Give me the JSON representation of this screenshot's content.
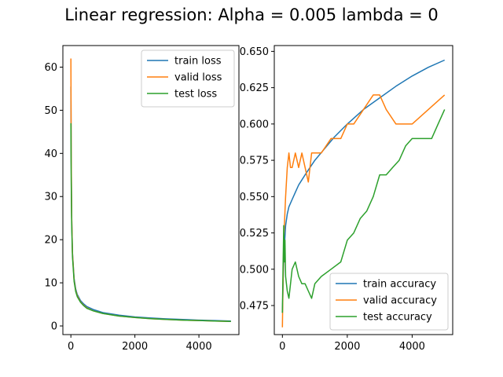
{
  "title": "Linear regression: Alpha = 0.005 lambda =  0",
  "chart_data": [
    {
      "type": "line",
      "xlim": [
        -250,
        5250
      ],
      "ylim": [
        -2,
        65
      ],
      "xticks": [
        0,
        2000,
        4000
      ],
      "yticks": [
        0,
        10,
        20,
        30,
        40,
        50,
        60
      ],
      "xtick_labels": [
        "0",
        "2000",
        "4000"
      ],
      "ytick_labels": [
        "0",
        "10",
        "20",
        "30",
        "40",
        "50",
        "60"
      ],
      "legend_position": "upper right",
      "series": [
        {
          "name": "train loss",
          "color": "#1f77b4",
          "x": [
            0,
            10,
            25,
            50,
            100,
            150,
            200,
            300,
            400,
            500,
            700,
            1000,
            1500,
            2000,
            2500,
            3000,
            3500,
            4000,
            4500,
            5000
          ],
          "y": [
            55.5,
            38.0,
            25.0,
            17.0,
            11.0,
            8.6,
            7.3,
            5.9,
            5.1,
            4.5,
            3.8,
            3.1,
            2.5,
            2.1,
            1.85,
            1.65,
            1.5,
            1.35,
            1.25,
            1.15
          ]
        },
        {
          "name": "valid loss",
          "color": "#ff7f0e",
          "x": [
            0,
            10,
            25,
            50,
            100,
            150,
            200,
            300,
            400,
            500,
            700,
            1000,
            1500,
            2000,
            2500,
            3000,
            3500,
            4000,
            4500,
            5000
          ],
          "y": [
            62.0,
            40.0,
            25.5,
            16.8,
            10.6,
            8.2,
            7.0,
            5.6,
            4.8,
            4.2,
            3.5,
            2.9,
            2.3,
            1.95,
            1.7,
            1.5,
            1.35,
            1.25,
            1.15,
            1.05
          ]
        },
        {
          "name": "test loss",
          "color": "#2ca02c",
          "x": [
            0,
            10,
            25,
            50,
            100,
            150,
            200,
            300,
            400,
            500,
            700,
            1000,
            1500,
            2000,
            2500,
            3000,
            3500,
            4000,
            4500,
            5000
          ],
          "y": [
            47.0,
            34.0,
            23.5,
            16.0,
            10.3,
            8.0,
            6.8,
            5.5,
            4.7,
            4.1,
            3.5,
            2.9,
            2.3,
            1.95,
            1.7,
            1.5,
            1.35,
            1.25,
            1.15,
            1.05
          ]
        }
      ]
    },
    {
      "type": "line",
      "xlim": [
        -250,
        5250
      ],
      "ylim": [
        0.455,
        0.654
      ],
      "xticks": [
        0,
        2000,
        4000
      ],
      "yticks": [
        0.475,
        0.5,
        0.525,
        0.55,
        0.575,
        0.6,
        0.625,
        0.65
      ],
      "xtick_labels": [
        "0",
        "2000",
        "4000"
      ],
      "ytick_labels": [
        "0.475",
        "0.500",
        "0.525",
        "0.550",
        "0.575",
        "0.600",
        "0.625",
        "0.650"
      ],
      "legend_position": "lower right",
      "series": [
        {
          "name": "train accuracy",
          "color": "#1f77b4",
          "x": [
            0,
            30,
            60,
            100,
            150,
            200,
            300,
            400,
            500,
            700,
            1000,
            1300,
            1600,
            2000,
            2500,
            3000,
            3500,
            4000,
            4500,
            5000
          ],
          "y": [
            0.47,
            0.5,
            0.515,
            0.53,
            0.538,
            0.543,
            0.548,
            0.553,
            0.558,
            0.565,
            0.575,
            0.583,
            0.591,
            0.6,
            0.61,
            0.618,
            0.626,
            0.633,
            0.639,
            0.644
          ]
        },
        {
          "name": "valid accuracy",
          "color": "#ff7f0e",
          "x": [
            0,
            20,
            40,
            60,
            80,
            100,
            150,
            200,
            250,
            300,
            400,
            500,
            600,
            700,
            800,
            900,
            1000,
            1200,
            1500,
            1800,
            2000,
            2200,
            2500,
            2800,
            3000,
            3200,
            3500,
            4000,
            4500,
            5000
          ],
          "y": [
            0.46,
            0.49,
            0.52,
            0.53,
            0.54,
            0.55,
            0.57,
            0.58,
            0.57,
            0.57,
            0.58,
            0.57,
            0.58,
            0.57,
            0.56,
            0.58,
            0.58,
            0.58,
            0.59,
            0.59,
            0.6,
            0.6,
            0.61,
            0.62,
            0.62,
            0.61,
            0.6,
            0.6,
            0.61,
            0.62
          ]
        },
        {
          "name": "test accuracy",
          "color": "#2ca02c",
          "x": [
            0,
            20,
            40,
            60,
            80,
            100,
            150,
            200,
            300,
            400,
            500,
            600,
            700,
            800,
            900,
            1000,
            1200,
            1500,
            1800,
            2000,
            2200,
            2400,
            2600,
            2800,
            3000,
            3200,
            3400,
            3600,
            3800,
            4000,
            4200,
            4400,
            4600,
            4800,
            4900,
            5000
          ],
          "y": [
            0.47,
            0.5,
            0.53,
            0.505,
            0.52,
            0.495,
            0.485,
            0.48,
            0.5,
            0.505,
            0.495,
            0.49,
            0.49,
            0.485,
            0.48,
            0.49,
            0.495,
            0.5,
            0.505,
            0.52,
            0.525,
            0.535,
            0.54,
            0.55,
            0.565,
            0.565,
            0.57,
            0.575,
            0.585,
            0.59,
            0.59,
            0.59,
            0.59,
            0.6,
            0.605,
            0.61
          ]
        }
      ]
    }
  ]
}
